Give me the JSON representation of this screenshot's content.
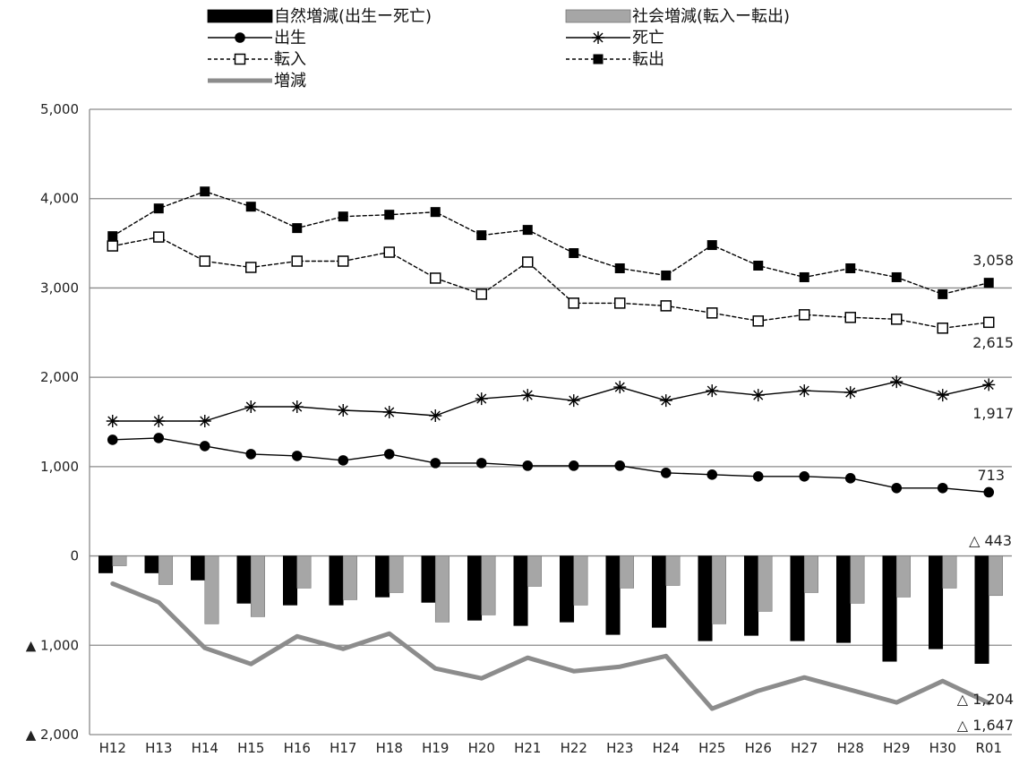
{
  "chart_data": {
    "type": "bar+line",
    "categories": [
      "H12",
      "H13",
      "H14",
      "H15",
      "H16",
      "H17",
      "H18",
      "H19",
      "H20",
      "H21",
      "H22",
      "H23",
      "H24",
      "H25",
      "H26",
      "H27",
      "H28",
      "H29",
      "H30",
      "R01"
    ],
    "ylim": [
      -2000,
      5000
    ],
    "y_ticks": [
      5000,
      4000,
      3000,
      2000,
      1000,
      0,
      -1000,
      -2000
    ],
    "y_tick_labels": [
      "5,000",
      "4,000",
      "3,000",
      "2,000",
      "1,000",
      "0",
      "▲ 1,000",
      "▲ 2,000"
    ],
    "grid": "horizontal",
    "legend_position": "top",
    "series": [
      {
        "name": "自然増減(出生ー死亡)",
        "type": "bar",
        "color": "#000000",
        "values": [
          -190,
          -190,
          -270,
          -530,
          -550,
          -550,
          -460,
          -520,
          -720,
          -780,
          -740,
          -880,
          -800,
          -950,
          -890,
          -950,
          -970,
          -1180,
          -1040,
          -1204
        ]
      },
      {
        "name": "社会増減(転入ー転出)",
        "type": "bar",
        "color": "#a6a6a6",
        "values": [
          -110,
          -320,
          -760,
          -680,
          -360,
          -490,
          -410,
          -740,
          -660,
          -340,
          -550,
          -360,
          -330,
          -760,
          -620,
          -410,
          -530,
          -460,
          -360,
          -443
        ]
      },
      {
        "name": "出生",
        "type": "line",
        "marker": "filled-circle",
        "dash": "solid",
        "color": "#000000",
        "values": [
          1300,
          1320,
          1230,
          1140,
          1120,
          1070,
          1140,
          1040,
          1040,
          1010,
          1010,
          1010,
          930,
          910,
          890,
          890,
          870,
          760,
          760,
          713
        ]
      },
      {
        "name": "死亡",
        "type": "line",
        "marker": "asterisk",
        "dash": "solid",
        "color": "#000000",
        "values": [
          1510,
          1510,
          1510,
          1670,
          1670,
          1630,
          1610,
          1570,
          1760,
          1800,
          1740,
          1890,
          1740,
          1850,
          1800,
          1850,
          1830,
          1950,
          1800,
          1917
        ]
      },
      {
        "name": "転入",
        "type": "line",
        "marker": "open-square",
        "dash": "dashed",
        "color": "#000000",
        "values": [
          3470,
          3570,
          3300,
          3230,
          3300,
          3300,
          3400,
          3110,
          2930,
          3290,
          2830,
          2830,
          2800,
          2720,
          2630,
          2700,
          2670,
          2650,
          2550,
          2615
        ]
      },
      {
        "name": "転出",
        "type": "line",
        "marker": "filled-square",
        "dash": "dashed",
        "color": "#000000",
        "values": [
          3580,
          3890,
          4080,
          3910,
          3670,
          3800,
          3820,
          3850,
          3590,
          3650,
          3390,
          3220,
          3140,
          3480,
          3250,
          3120,
          3220,
          3120,
          2930,
          3058
        ]
      },
      {
        "name": "増減",
        "type": "line",
        "marker": "none",
        "dash": "solid",
        "color": "#8c8c8c",
        "values": [
          -310,
          -520,
          -1030,
          -1210,
          -900,
          -1040,
          -870,
          -1260,
          -1370,
          -1140,
          -1290,
          -1240,
          -1120,
          -1710,
          -1510,
          -1360,
          -1500,
          -1640,
          -1400,
          -1647
        ]
      }
    ],
    "annotations": [
      "3,058",
      "2,615",
      "1,917",
      "713",
      "△ 443",
      "△ 1,204",
      "△ 1,647"
    ]
  }
}
